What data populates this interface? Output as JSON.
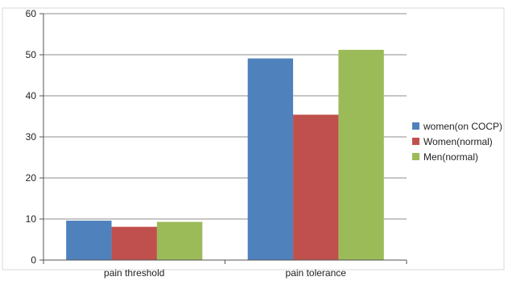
{
  "chart_data": {
    "type": "bar",
    "title": "",
    "xlabel": "",
    "ylabel": "",
    "categories": [
      "pain threshold",
      "pain tolerance"
    ],
    "series": [
      {
        "name": "women(on COCP)",
        "values": [
          9.6,
          49.1
        ],
        "color": "#4F81BD"
      },
      {
        "name": "Women(normal)",
        "values": [
          8.1,
          35.4
        ],
        "color": "#C0504D"
      },
      {
        "name": "Men(normal)",
        "values": [
          9.3,
          51.2
        ],
        "color": "#9BBB59"
      }
    ],
    "ylim": [
      0,
      60
    ],
    "yticks": [
      0,
      10,
      20,
      30,
      40,
      50,
      60
    ],
    "grid": true,
    "legend": "right"
  }
}
